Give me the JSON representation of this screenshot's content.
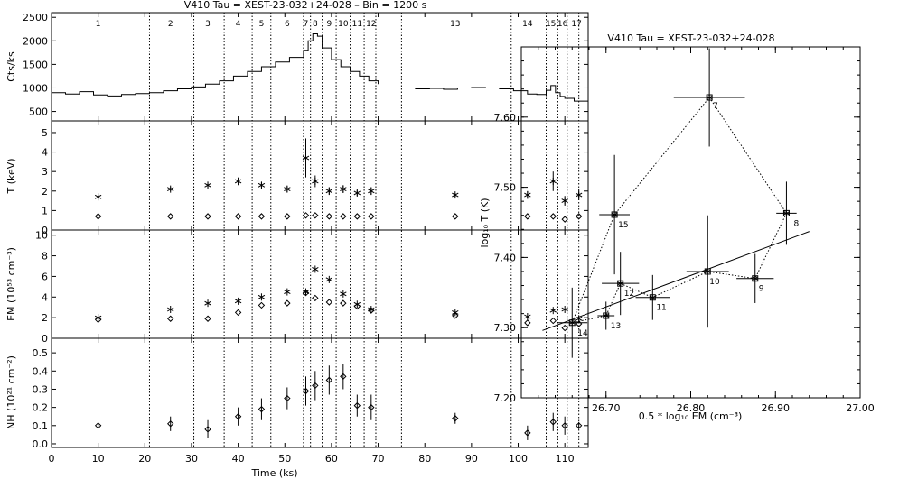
{
  "chart_data": [
    {
      "type": "line",
      "title": "V410 Tau = XEST-23-032+24-028   –   Bin = 1200 s",
      "xlabel": "Time (ks)",
      "xlim": [
        0,
        115
      ],
      "xticks": [
        "0",
        "10",
        "20",
        "30",
        "40",
        "50",
        "60",
        "70",
        "80",
        "90",
        "100",
        "110"
      ],
      "segment_boundaries": [
        21,
        30.5,
        37,
        43,
        47,
        54,
        55.5,
        58,
        61,
        64,
        67,
        69.5,
        75,
        98.5,
        106,
        108.5,
        110.5,
        113
      ],
      "segment_labels": [
        {
          "label": "1",
          "t": 10
        },
        {
          "label": "2",
          "t": 25.5
        },
        {
          "label": "3",
          "t": 33.5
        },
        {
          "label": "4",
          "t": 40
        },
        {
          "label": "5",
          "t": 45
        },
        {
          "label": "6",
          "t": 50.5
        },
        {
          "label": "7",
          "t": 54.5
        },
        {
          "label": "8",
          "t": 56.5
        },
        {
          "label": "9",
          "t": 59.5
        },
        {
          "label": "10",
          "t": 62.5
        },
        {
          "label": "11",
          "t": 65.5
        },
        {
          "label": "12",
          "t": 68.5
        },
        {
          "label": "13",
          "t": 86.5
        },
        {
          "label": "14",
          "t": 102
        },
        {
          "label": "15",
          "t": 107
        },
        {
          "label": "16",
          "t": 109.5
        },
        {
          "label": "17",
          "t": 112.5
        }
      ],
      "panels": [
        {
          "ylabel": "Cts/ks",
          "ylim": [
            300,
            2600
          ],
          "yticks": [
            "500",
            "1000",
            "1500",
            "2000",
            "2500"
          ],
          "series": [
            {
              "segments": [
                {
                  "x": [
                    0,
                    3,
                    6,
                    9,
                    12,
                    15,
                    18,
                    21,
                    24,
                    27,
                    30,
                    33,
                    36,
                    39,
                    42,
                    45,
                    48,
                    51,
                    54,
                    55,
                    56,
                    57,
                    58,
                    60,
                    62,
                    64,
                    66,
                    68,
                    70
                  ],
                  "y": [
                    900,
                    870,
                    920,
                    850,
                    830,
                    860,
                    880,
                    900,
                    940,
                    980,
                    1020,
                    1080,
                    1150,
                    1250,
                    1350,
                    1450,
                    1550,
                    1650,
                    1800,
                    2000,
                    2150,
                    2100,
                    1850,
                    1600,
                    1450,
                    1350,
                    1250,
                    1150,
                    1080
                  ]
                },
                {
                  "x": [
                    75,
                    78,
                    81,
                    84,
                    87,
                    90,
                    93,
                    96,
                    99,
                    102,
                    104,
                    106,
                    107,
                    108,
                    109,
                    110,
                    112,
                    115
                  ],
                  "y": [
                    1000,
                    980,
                    990,
                    970,
                    1000,
                    1010,
                    1000,
                    980,
                    940,
                    870,
                    860,
                    950,
                    1050,
                    900,
                    820,
                    780,
                    720,
                    700
                  ]
                }
              ]
            }
          ]
        },
        {
          "ylabel": "T (keV)",
          "ylim": [
            0,
            5.6
          ],
          "yticks": [
            "0",
            "1",
            "2",
            "3",
            "4",
            "5"
          ],
          "series": [
            {
              "marker": "asterisk",
              "x": [
                10,
                25.5,
                33.5,
                40,
                45,
                50.5,
                54.5,
                56.5,
                59.5,
                62.5,
                65.5,
                68.5,
                86.5,
                102,
                107.5,
                110,
                113
              ],
              "y": [
                1.7,
                2.1,
                2.3,
                2.5,
                2.3,
                2.1,
                3.7,
                2.5,
                2.0,
                2.1,
                1.9,
                2.0,
                1.8,
                1.8,
                2.5,
                1.5,
                1.8
              ],
              "err": [
                0.1,
                0.1,
                0.15,
                0.2,
                0.15,
                0.15,
                1.0,
                0.3,
                0.2,
                0.2,
                0.15,
                0.2,
                0.1,
                0.2,
                0.5,
                0.25,
                0.25
              ]
            },
            {
              "marker": "diamond",
              "x": [
                10,
                25.5,
                33.5,
                40,
                45,
                50.5,
                54.5,
                56.5,
                59.5,
                62.5,
                65.5,
                68.5,
                86.5,
                102,
                107.5,
                110,
                113
              ],
              "y": [
                0.7,
                0.7,
                0.7,
                0.7,
                0.7,
                0.7,
                0.75,
                0.75,
                0.7,
                0.7,
                0.7,
                0.7,
                0.7,
                0.7,
                0.7,
                0.55,
                0.7
              ]
            }
          ]
        },
        {
          "ylabel": "EM (10⁵³ cm⁻³)",
          "ylim": [
            0,
            10.5
          ],
          "yticks": [
            "0",
            "2",
            "4",
            "6",
            "8",
            "10"
          ],
          "series": [
            {
              "marker": "asterisk",
              "x": [
                10,
                25.5,
                33.5,
                40,
                45,
                50.5,
                54.5,
                56.5,
                59.5,
                62.5,
                65.5,
                68.5,
                86.5,
                102,
                107.5,
                110,
                113
              ],
              "y": [
                2.0,
                2.8,
                3.4,
                3.6,
                4.0,
                4.5,
                4.5,
                6.7,
                5.7,
                4.3,
                3.3,
                2.8,
                2.5,
                2.1,
                2.7,
                2.8,
                1.9
              ]
            },
            {
              "marker": "diamond",
              "x": [
                10,
                25.5,
                33.5,
                40,
                45,
                50.5,
                54.5,
                56.5,
                59.5,
                62.5,
                65.5,
                68.5,
                86.5,
                102,
                107.5,
                110,
                113
              ],
              "y": [
                1.8,
                1.9,
                1.9,
                2.5,
                3.2,
                3.4,
                4.4,
                3.9,
                3.5,
                3.4,
                3.1,
                2.7,
                2.2,
                1.5,
                1.7,
                1.0,
                1.4
              ]
            }
          ]
        },
        {
          "ylabel": "NH (10²¹ cm⁻²)",
          "ylim": [
            -0.02,
            0.58
          ],
          "yticks": [
            "0.0",
            "0.1",
            "0.2",
            "0.3",
            "0.4",
            "0.5"
          ],
          "series": [
            {
              "marker": "diamond",
              "x": [
                10,
                25.5,
                33.5,
                40,
                45,
                50.5,
                54.5,
                56.5,
                59.5,
                62.5,
                65.5,
                68.5,
                86.5,
                102,
                107.5,
                110,
                113
              ],
              "y": [
                0.1,
                0.11,
                0.08,
                0.15,
                0.19,
                0.25,
                0.29,
                0.32,
                0.35,
                0.37,
                0.21,
                0.2,
                0.14,
                0.06,
                0.12,
                0.1,
                0.1
              ],
              "err": [
                0.01,
                0.04,
                0.05,
                0.05,
                0.06,
                0.06,
                0.08,
                0.08,
                0.08,
                0.07,
                0.06,
                0.07,
                0.03,
                0.04,
                0.05,
                0.05,
                0.02
              ]
            }
          ]
        }
      ]
    },
    {
      "type": "scatter",
      "title": "V410 Tau = XEST-23-032+24-028",
      "xlabel": "0.5 * log₁₀ EM (cm⁻³)",
      "ylabel": "log₁₀ T (K)",
      "xlim": [
        26.6,
        27.0
      ],
      "ylim": [
        7.2,
        7.7
      ],
      "xticks": [
        "26.70",
        "26.80",
        "26.90",
        "27.00"
      ],
      "yticks": [
        "7.20",
        "7.30",
        "7.40",
        "7.50",
        "7.60"
      ],
      "points": [
        {
          "label": "7",
          "x": 26.822,
          "y": 7.628,
          "xerr": 0.042,
          "yerr": 0.07
        },
        {
          "label": "8",
          "x": 26.913,
          "y": 7.463,
          "xerr": 0.012,
          "yerr": 0.045
        },
        {
          "label": "9",
          "x": 26.876,
          "y": 7.37,
          "xerr": 0.022,
          "yerr": 0.035
        },
        {
          "label": "10",
          "x": 26.82,
          "y": 7.38,
          "xerr": 0.025,
          "yerr": 0.08
        },
        {
          "label": "11",
          "x": 26.755,
          "y": 7.343,
          "xerr": 0.02,
          "yerr": 0.032
        },
        {
          "label": "12",
          "x": 26.717,
          "y": 7.363,
          "xerr": 0.022,
          "yerr": 0.045
        },
        {
          "label": "13",
          "x": 26.7,
          "y": 7.317,
          "xerr": 0.01,
          "yerr": 0.02
        },
        {
          "label": "14",
          "x": 26.66,
          "y": 7.307,
          "xerr": 0.018,
          "yerr": 0.05
        },
        {
          "label": "15",
          "x": 26.71,
          "y": 7.461,
          "xerr": 0.018,
          "yerr": 0.085
        }
      ],
      "path_order": [
        "7",
        "8",
        "9",
        "10",
        "11",
        "12",
        "13",
        "14",
        "15",
        "7"
      ],
      "fit_line": {
        "x": [
          26.625,
          26.94
        ],
        "y": [
          7.296,
          7.437
        ]
      }
    }
  ]
}
